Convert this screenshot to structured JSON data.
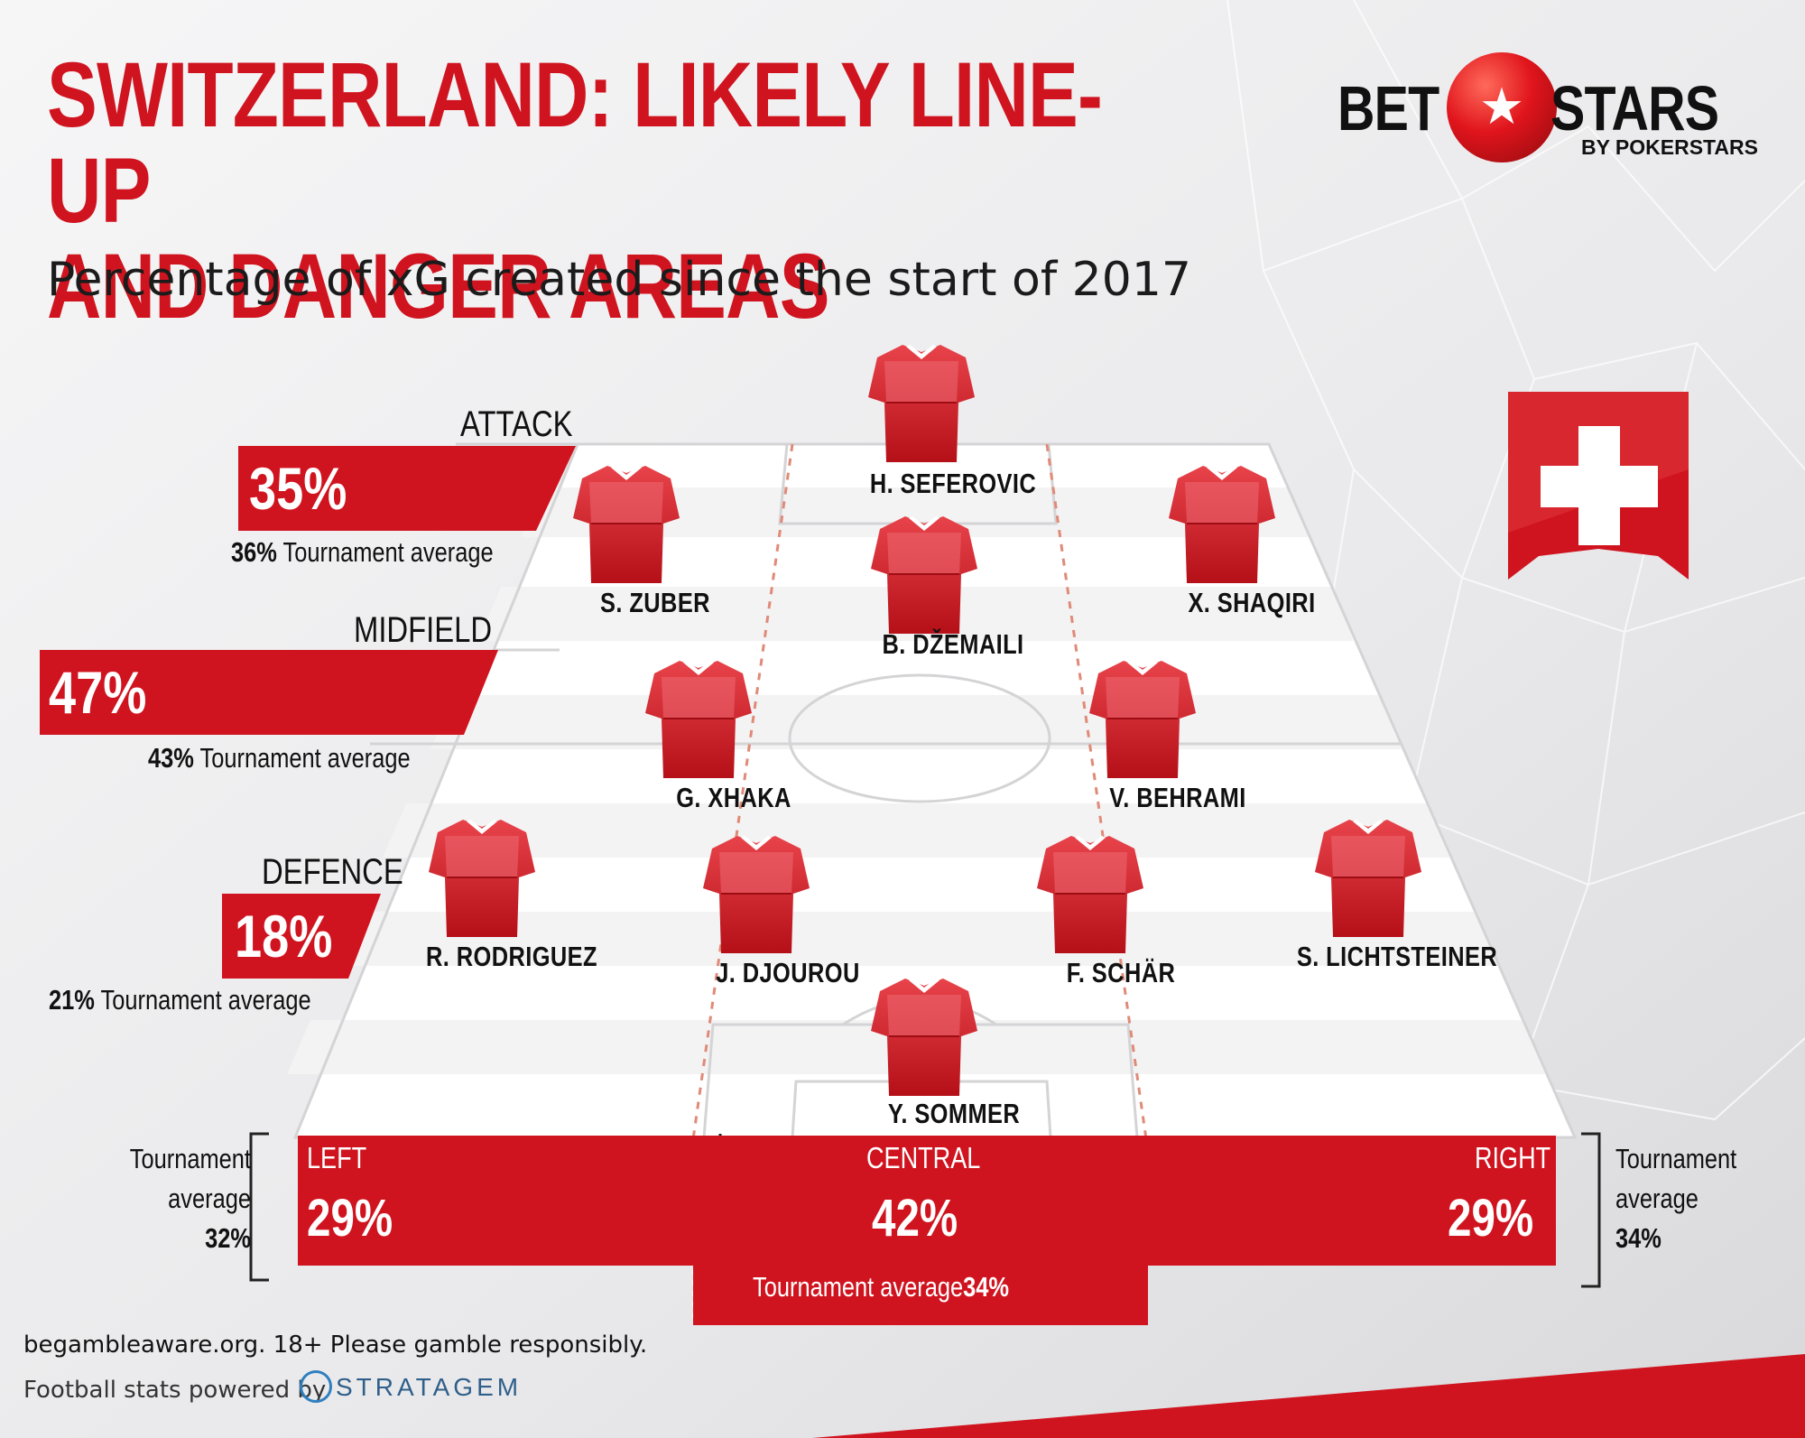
{
  "title_line1": "SWITZERLAND: LIKELY LINE-UP",
  "title_line2": "AND DANGER AREAS",
  "subtitle": "Percentage of xG created since the start of 2017",
  "logo": {
    "bet": "BET",
    "stars": "STARS",
    "by": "BY POKERSTARS",
    "ball_icon": "soccer-ball-star-icon"
  },
  "zones": {
    "attack": {
      "label": "ATTACK",
      "pct": "35%",
      "avg_value": "36%",
      "avg_text": "Tournament average"
    },
    "midfield": {
      "label": "MIDFIELD",
      "pct": "47%",
      "avg_value": "43%",
      "avg_text": "Tournament average"
    },
    "defence": {
      "label": "DEFENCE",
      "pct": "18%",
      "avg_value": "21%",
      "avg_text": "Tournament average"
    }
  },
  "players": [
    {
      "name": "H. SEFEROVIC"
    },
    {
      "name": "S. ZUBER"
    },
    {
      "name": "X. SHAQIRI"
    },
    {
      "name": "B. DŽEMAILI"
    },
    {
      "name": "G. XHAKA"
    },
    {
      "name": "V. BEHRAMI"
    },
    {
      "name": "R. RODRIGUEZ"
    },
    {
      "name": "J. DJOUROU"
    },
    {
      "name": "F. SCHÄR"
    },
    {
      "name": "S. LICHTSTEINER"
    },
    {
      "name": "Y. SOMMER"
    }
  ],
  "channels": {
    "left": {
      "label": "LEFT",
      "pct": "29%"
    },
    "central": {
      "label": "CENTRAL",
      "pct": "42%",
      "avg_text": "Tournament average",
      "avg_value": "34%"
    },
    "right": {
      "label": "RIGHT",
      "pct": "29%"
    }
  },
  "left_note": {
    "line1": "Tournament",
    "line2": "average",
    "value": "32%"
  },
  "right_note": {
    "line1": "Tournament",
    "line2": "average",
    "value": "34%"
  },
  "footer": {
    "responsible": "begambleaware.org. 18+ Please gamble responsibly.",
    "powered": "Football stats powered by",
    "provider": "STRATAGEM"
  },
  "colors": {
    "brand_red": "#d0141f",
    "pitch": "#ffffff",
    "background": "#ececee"
  },
  "flag_icon": "swiss-flag-icon"
}
